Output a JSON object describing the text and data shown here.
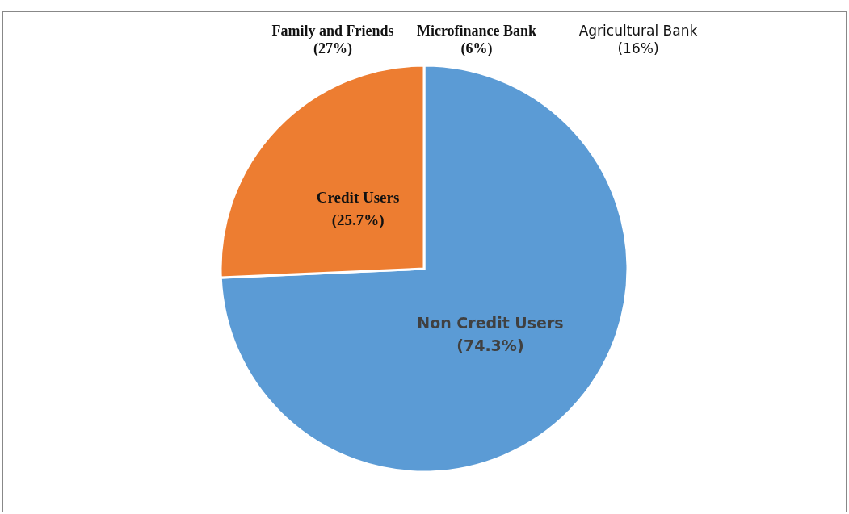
{
  "chart_data": {
    "type": "pie",
    "categories": [
      "Non Credit Users",
      "Credit Users"
    ],
    "values": [
      74.3,
      25.7
    ],
    "colors": [
      "#5b9bd5",
      "#ed7d31"
    ],
    "value_labels": [
      "(74.3%)",
      "(25.7%)"
    ],
    "annotations": [
      "Family and Friends (27%)",
      "Microfinance Bank (6%)",
      "Agricultural Bank (16%)"
    ]
  }
}
